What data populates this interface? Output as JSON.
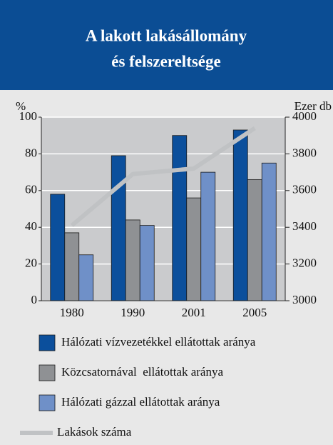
{
  "chart_data": {
    "type": "bar",
    "title": [
      "A lakott lakásállomány",
      "és felszereltsége"
    ],
    "ylabel": "%",
    "y2label": "Ezer db",
    "categories": [
      "1980",
      "1990",
      "2001",
      "2005"
    ],
    "series": [
      {
        "name": "Hálózati vízvezetékkel ellátottak aránya",
        "color": "#0b4f9c",
        "values": [
          58,
          79,
          90,
          93
        ]
      },
      {
        "name": "Közcsatornával  ellátottak aránya",
        "color": "#8f9194",
        "values": [
          37,
          44,
          56,
          66
        ]
      },
      {
        "name": "Hálózati gázzal ellátottak aránya",
        "color": "#6f90c8",
        "values": [
          25,
          41,
          70,
          75
        ]
      },
      {
        "name": "Lakások száma",
        "color": "#c0c2c4",
        "type": "line",
        "axis": "y2",
        "values": [
          3410,
          3690,
          3720,
          3940
        ]
      }
    ],
    "ylim": [
      0,
      100
    ],
    "yticks": [
      0,
      20,
      40,
      60,
      80,
      100
    ],
    "y2lim": [
      3000,
      4000
    ],
    "y2ticks": [
      3000,
      3200,
      3400,
      3600,
      3800,
      4000
    ],
    "grid": true
  }
}
